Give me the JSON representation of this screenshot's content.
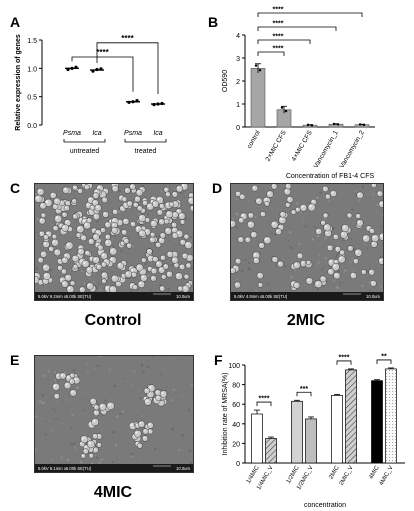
{
  "panels": {
    "a": "A",
    "b": "B",
    "c": "C",
    "d": "D",
    "e": "E",
    "f": "F"
  },
  "captions": {
    "c": "Control",
    "d": "2MIC",
    "e": "4MIC"
  },
  "sem_footers": {
    "c": "5.0kV 9.2mm x5.00k SE(TU)",
    "c_scale": "10.0um",
    "d": "5.0kV 4.9mm x5.00k SE(TU)",
    "d_scale": "10.0um",
    "e": "5.0kV 9.1mm x5.00k SE(TU)",
    "e_scale": "10.0um"
  },
  "chart_data": [
    {
      "panel": "A",
      "type": "scatter",
      "ylabel": "Relative expression of genes",
      "ylim": [
        0,
        1.5
      ],
      "yticks": [
        "0.0",
        "0.5",
        "1.0",
        "1.5"
      ],
      "categories": [
        "Psma",
        "Ica",
        "Psma",
        "Ica"
      ],
      "groups": [
        {
          "label": "untreated",
          "members": [
            0,
            1
          ]
        },
        {
          "label": "treated",
          "members": [
            2,
            3
          ]
        }
      ],
      "values": [
        1.0,
        0.97,
        0.41,
        0.37
      ],
      "points": [
        [
          0.98,
          1.0,
          1.02
        ],
        [
          0.95,
          0.98,
          0.99
        ],
        [
          0.4,
          0.41,
          0.43
        ],
        [
          0.36,
          0.37,
          0.38
        ]
      ],
      "significance": [
        {
          "from": 0,
          "to": 2,
          "label": "****"
        },
        {
          "from": 1,
          "to": 3,
          "label": "****"
        }
      ]
    },
    {
      "panel": "B",
      "type": "bar",
      "ylabel": "OD590",
      "xlabel": "Concentration of FB1-4 CFS",
      "ylim": [
        0,
        4
      ],
      "yticks": [
        "0",
        "1",
        "2",
        "3",
        "4"
      ],
      "categories": [
        "control",
        "2×MIC CFS",
        "4×MIC CFS",
        "Vancomycin_1",
        "Vancomycin_2"
      ],
      "values": [
        2.55,
        0.75,
        0.08,
        0.12,
        0.1
      ],
      "errors": [
        0.2,
        0.15,
        0.02,
        0.02,
        0.02
      ],
      "significance": [
        {
          "from": 0,
          "to": 1,
          "label": "****"
        },
        {
          "from": 0,
          "to": 2,
          "label": "****"
        },
        {
          "from": 0,
          "to": 3,
          "label": "****"
        },
        {
          "from": 0,
          "to": 4,
          "label": "****"
        }
      ]
    },
    {
      "panel": "F",
      "type": "bar",
      "ylabel": "Inhibition rate of MRSA(%)",
      "xlabel": "concentration",
      "ylim": [
        0,
        100
      ],
      "yticks": [
        "0",
        "20",
        "40",
        "60",
        "80",
        "100"
      ],
      "categories": [
        "1/4MIC",
        "1/4MIC_V",
        "1/2MIC",
        "1/2MIC_V",
        "2MIC",
        "2MIC_V",
        "4MIC",
        "4MIC_V"
      ],
      "values": [
        50,
        25,
        63,
        45,
        69,
        95,
        84,
        96
      ],
      "errors": [
        4,
        1.5,
        1,
        2,
        1,
        1,
        1,
        1
      ],
      "colors": [
        "#ffffff",
        "#d9d9d9",
        "#d2d2d2",
        "#bdbdbd",
        "#ffffff",
        "#8c8c8c",
        "#000000",
        "#f4f4f4"
      ],
      "significance": [
        {
          "from": 0,
          "to": 1,
          "label": "****"
        },
        {
          "from": 2,
          "to": 3,
          "label": "***"
        },
        {
          "from": 4,
          "to": 5,
          "label": "****"
        },
        {
          "from": 6,
          "to": 7,
          "label": "**"
        }
      ]
    }
  ]
}
